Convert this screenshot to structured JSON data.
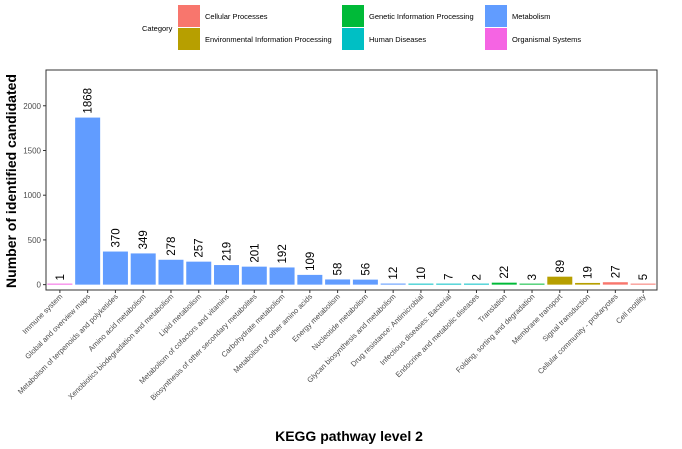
{
  "chart_data": {
    "type": "bar",
    "xlabel": "KEGG pathway level 2",
    "ylabel": "Number of identified candidated",
    "ylim": [
      -60,
      2400
    ],
    "yticks": [
      0,
      500,
      1000,
      1500,
      2000
    ],
    "grid": false,
    "legend": {
      "title": "Category",
      "placement": "top",
      "entries": [
        {
          "name": "Cellular Processes",
          "color": "#F8766D"
        },
        {
          "name": "Environmental Information Processing",
          "color": "#B79F00"
        },
        {
          "name": "Genetic Information Processing",
          "color": "#00BA38"
        },
        {
          "name": "Human Diseases",
          "color": "#00BFC4"
        },
        {
          "name": "Metabolism",
          "color": "#619CFF"
        },
        {
          "name": "Organismal Systems",
          "color": "#F564E3"
        }
      ]
    },
    "bars": [
      {
        "label": "Immune system",
        "value": 1,
        "category": "Organismal Systems"
      },
      {
        "label": "Global and overview maps",
        "value": 1868,
        "category": "Metabolism"
      },
      {
        "label": "Metabolism of terpenoids and polyketides",
        "value": 370,
        "category": "Metabolism"
      },
      {
        "label": "Amino acid metabolism",
        "value": 349,
        "category": "Metabolism"
      },
      {
        "label": "Xenobiotics biodegradation and metabolism",
        "value": 278,
        "category": "Metabolism"
      },
      {
        "label": "Lipid metabolism",
        "value": 257,
        "category": "Metabolism"
      },
      {
        "label": "Metabolism of cofactors and vitamins",
        "value": 219,
        "category": "Metabolism"
      },
      {
        "label": "Biosynthesis of other secondary metabolites",
        "value": 201,
        "category": "Metabolism"
      },
      {
        "label": "Carbohydrate metabolism",
        "value": 192,
        "category": "Metabolism"
      },
      {
        "label": "Metabolism of other amino acids",
        "value": 109,
        "category": "Metabolism"
      },
      {
        "label": "Energy metabolism",
        "value": 58,
        "category": "Metabolism"
      },
      {
        "label": "Nucleotide metabolism",
        "value": 56,
        "category": "Metabolism"
      },
      {
        "label": "Glycan biosynthesis and metabolism",
        "value": 12,
        "category": "Metabolism"
      },
      {
        "label": "Drug resistance: Antimicrobial",
        "value": 10,
        "category": "Human Diseases"
      },
      {
        "label": "Infectious diseases: Bacterial",
        "value": 7,
        "category": "Human Diseases"
      },
      {
        "label": "Endocrine and metabolic diseases",
        "value": 2,
        "category": "Human Diseases"
      },
      {
        "label": "Translation",
        "value": 22,
        "category": "Genetic Information Processing"
      },
      {
        "label": "Folding, sorting and degradation",
        "value": 3,
        "category": "Genetic Information Processing"
      },
      {
        "label": "Membrane transport",
        "value": 89,
        "category": "Environmental Information Processing"
      },
      {
        "label": "Signal transduction",
        "value": 19,
        "category": "Environmental Information Processing"
      },
      {
        "label": "Cellular community - prokaryotes",
        "value": 27,
        "category": "Cellular Processes"
      },
      {
        "label": "Cell motility",
        "value": 5,
        "category": "Cellular Processes"
      }
    ]
  }
}
